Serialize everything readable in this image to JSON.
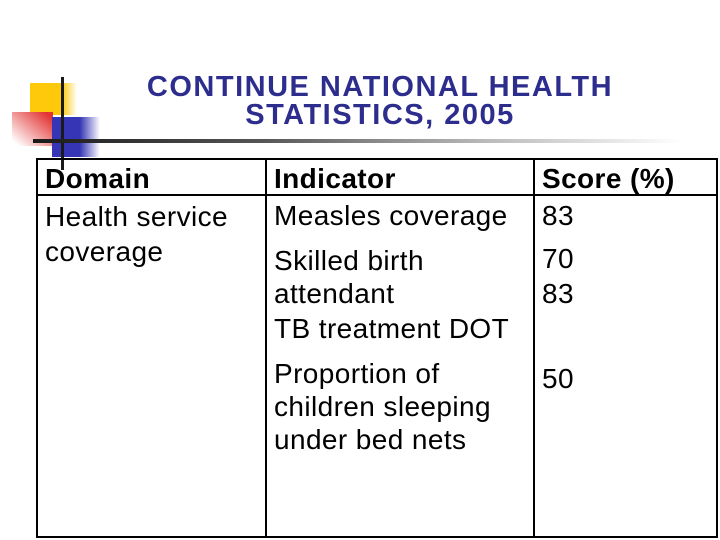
{
  "slide": {
    "title": "CONTINUE NATIONAL HEALTH\nSTATISTICS, 2005"
  },
  "table": {
    "headers": [
      "Domain",
      "Indicator",
      "Score (%)"
    ],
    "row": {
      "domain": "Health service\ncoverage",
      "indicators": [
        {
          "text": "Measles coverage",
          "score": "83"
        },
        {
          "text": "Skilled birth\nattendant",
          "score": "70"
        },
        {
          "text": "TB treatment DOT",
          "score": "83"
        },
        {
          "text": "Proportion of\nchildren sleeping\nunder bed nets",
          "score": "50"
        }
      ]
    }
  },
  "colors": {
    "title-color": "#2D2D8E",
    "logo-yellow": "#FFC90B",
    "logo-red": "#E23434",
    "logo-blue": "#3535B5",
    "table-border": "#000000",
    "text-color": "#000000"
  }
}
